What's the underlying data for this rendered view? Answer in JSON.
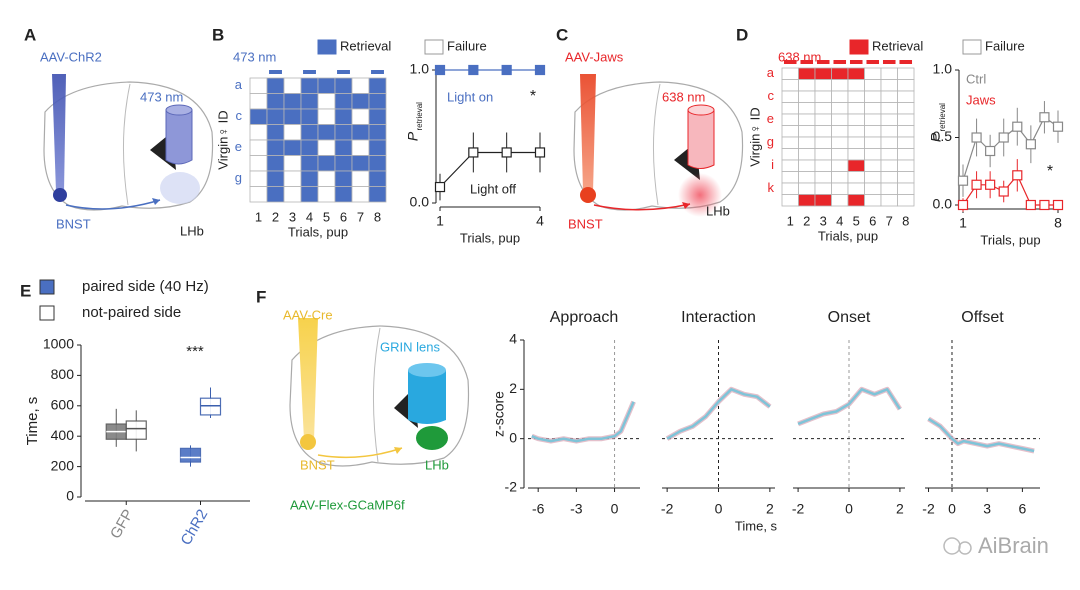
{
  "labels": {
    "A": "A",
    "B": "B",
    "C": "C",
    "D": "D",
    "E": "E",
    "F": "F",
    "a_virus": "AAV-ChR2",
    "a_light": "473 nm",
    "a_bnst": "BNST",
    "a_lhb": "LHb",
    "c_virus": "AAV-Jaws",
    "c_light": "638 nm",
    "c_bnst": "BNST",
    "c_lhb": "LHb",
    "f_virus": "AAV-Cre",
    "f_lens": "GRIN lens",
    "f_bnst": "BNST",
    "f_lhb": "LHb",
    "f_reporter": "AAV-Flex-GCaMP6f",
    "f_xlabel": "Time, s",
    "watermark": "AiBrain"
  },
  "chart_data": [
    {
      "type": "grid",
      "title": "473 nm",
      "color": "#4a6fc1",
      "label_color": "#4a6fc1",
      "legend": [
        "Retrieval",
        "Failure"
      ],
      "ylabel": "Virgin♀ ID",
      "xlabel": "Trials, pup",
      "rows": [
        "a",
        null,
        "c",
        null,
        "e",
        null,
        "g",
        null
      ],
      "columns": [
        1,
        2,
        3,
        4,
        5,
        6,
        7,
        8
      ],
      "light_on": [
        0,
        1,
        0,
        1,
        0,
        1,
        0,
        1
      ],
      "values": [
        [
          0,
          1,
          0,
          1,
          1,
          1,
          0,
          1
        ],
        [
          0,
          1,
          1,
          1,
          0,
          1,
          1,
          1
        ],
        [
          1,
          1,
          1,
          1,
          0,
          1,
          0,
          1
        ],
        [
          0,
          1,
          0,
          1,
          1,
          1,
          1,
          1
        ],
        [
          0,
          1,
          1,
          1,
          0,
          1,
          0,
          1
        ],
        [
          0,
          1,
          0,
          1,
          1,
          1,
          1,
          1
        ],
        [
          0,
          1,
          0,
          1,
          0,
          1,
          0,
          1
        ],
        [
          0,
          1,
          0,
          1,
          0,
          1,
          0,
          1
        ]
      ]
    },
    {
      "type": "line",
      "markers": "square",
      "ylabel": "P",
      "ylabel_sub": "retrieval",
      "xlabel": "Trials, pup",
      "xlim": [
        1,
        4
      ],
      "xticks": [
        1,
        4
      ],
      "ylim": [
        0,
        1
      ],
      "yticks": [
        {
          "value": 0,
          "label": "0.0"
        },
        {
          "value": 1,
          "label": "1.0"
        }
      ],
      "annotations": [
        "*"
      ],
      "series": [
        {
          "name": "Light on",
          "color": "#4a6fc1",
          "fill": "#4a6fc1",
          "x": [
            1,
            2,
            3,
            4
          ],
          "values": [
            1,
            1,
            1,
            1
          ]
        },
        {
          "name": "Light off",
          "color": "#222222",
          "fill": "#ffffff",
          "x": [
            1,
            2,
            3,
            4
          ],
          "values": [
            0.12,
            0.38,
            0.38,
            0.38
          ],
          "errors": [
            0.1,
            0.15,
            0.15,
            0.15
          ]
        }
      ]
    },
    {
      "type": "grid",
      "title": "638 nm",
      "color": "#e8262a",
      "label_color": "#e8262a",
      "legend": [
        "Retrieval",
        "Failure"
      ],
      "ylabel": "Virgin♀ ID",
      "xlabel": "Trials, pup",
      "rows": [
        "a",
        null,
        "c",
        null,
        "e",
        null,
        "g",
        null,
        "i",
        null,
        "k",
        null
      ],
      "columns": [
        1,
        2,
        3,
        4,
        5,
        6,
        7,
        8
      ],
      "light_on": [
        1,
        1,
        1,
        1,
        1,
        1,
        1,
        1
      ],
      "values": [
        [
          0,
          1,
          1,
          1,
          1,
          0,
          0,
          0
        ],
        [
          0,
          0,
          0,
          0,
          0,
          0,
          0,
          0
        ],
        [
          0,
          0,
          0,
          0,
          0,
          0,
          0,
          0
        ],
        [
          0,
          0,
          0,
          0,
          0,
          0,
          0,
          0
        ],
        [
          0,
          0,
          0,
          0,
          0,
          0,
          0,
          0
        ],
        [
          0,
          0,
          0,
          0,
          0,
          0,
          0,
          0
        ],
        [
          0,
          0,
          0,
          0,
          0,
          0,
          0,
          0
        ],
        [
          0,
          0,
          0,
          0,
          0,
          0,
          0,
          0
        ],
        [
          0,
          0,
          0,
          0,
          1,
          0,
          0,
          0
        ],
        [
          0,
          0,
          0,
          0,
          0,
          0,
          0,
          0
        ],
        [
          0,
          0,
          0,
          0,
          0,
          0,
          0,
          0
        ],
        [
          0,
          1,
          1,
          0,
          1,
          0,
          0,
          0
        ]
      ]
    },
    {
      "type": "line",
      "markers": "square",
      "ylabel": "P",
      "ylabel_sub": "retrieval",
      "xlabel": "Trials, pup",
      "xlim": [
        1,
        8
      ],
      "xticks": [
        1,
        8
      ],
      "ylim": [
        0,
        1
      ],
      "yticks": [
        {
          "value": 0,
          "label": "0.0"
        },
        {
          "value": 0.5,
          "label": "0.5"
        },
        {
          "value": 1,
          "label": "1.0"
        }
      ],
      "annotations": [
        "*"
      ],
      "series": [
        {
          "name": "Ctrl",
          "color": "#888888",
          "fill": "#ffffff",
          "x": [
            1,
            2,
            3,
            4,
            5,
            6,
            7,
            8
          ],
          "values": [
            0.18,
            0.5,
            0.4,
            0.5,
            0.58,
            0.45,
            0.65,
            0.58
          ],
          "errors": [
            0.12,
            0.14,
            0.12,
            0.14,
            0.14,
            0.14,
            0.12,
            0.12
          ]
        },
        {
          "name": "Jaws",
          "color": "#e8262a",
          "fill": "#ffffff",
          "x": [
            1,
            2,
            3,
            4,
            5,
            6,
            7,
            8
          ],
          "values": [
            0,
            0.15,
            0.15,
            0.1,
            0.22,
            0,
            0,
            0
          ],
          "errors": [
            0.05,
            0.1,
            0.1,
            0.08,
            0.12,
            0.03,
            0.03,
            0.03
          ]
        }
      ]
    },
    {
      "type": "box",
      "ylabel": "Time, s",
      "categories": [
        "GFP",
        "ChR2"
      ],
      "category_colors": [
        "#888888",
        "#4a6fc1"
      ],
      "ylim": [
        0,
        1000
      ],
      "yticks": [
        0,
        200,
        400,
        600,
        800,
        1000
      ],
      "annotations": [
        "***"
      ],
      "series": [
        {
          "name": "paired side (40 Hz)",
          "fill": [
            "#7f7f7f",
            "#4a6fc1"
          ],
          "edge": [
            "#555555",
            "#3b5fae"
          ],
          "min": [
            330,
            200
          ],
          "q1": [
            380,
            230
          ],
          "median": [
            430,
            260
          ],
          "q3": [
            480,
            320
          ],
          "max": [
            580,
            340
          ]
        },
        {
          "name": "not-paired side",
          "fill": [
            "#ffffff",
            "#ffffff"
          ],
          "edge": [
            "#555555",
            "#3b5fae"
          ],
          "min": [
            300,
            520
          ],
          "q1": [
            380,
            540
          ],
          "median": [
            450,
            600
          ],
          "q3": [
            500,
            650
          ],
          "max": [
            570,
            720
          ]
        }
      ]
    },
    {
      "type": "line",
      "title": "Approach",
      "ylabel": "z-score",
      "show_yaxis": true,
      "xlim": [
        -6.8,
        2
      ],
      "xticks": [
        -6,
        -3,
        0
      ],
      "ylim": [
        -2,
        4
      ],
      "yticks": [
        -2,
        0,
        2,
        4
      ],
      "ref_color": "#999999",
      "series": [
        {
          "color": "#7fc4d8",
          "x": [
            -6.5,
            -6,
            -5,
            -4,
            -3,
            -2,
            -1,
            0,
            0.5,
            1,
            1.5
          ],
          "values": [
            0.1,
            0,
            -0.1,
            0,
            -0.1,
            0,
            0,
            0.1,
            0.3,
            0.9,
            1.5
          ]
        }
      ]
    },
    {
      "type": "line",
      "title": "Interaction",
      "xlim": [
        -2.2,
        2.2
      ],
      "xticks": [
        -2,
        0,
        2
      ],
      "ylim": [
        -2,
        4
      ],
      "ref_color": "#222222",
      "series": [
        {
          "color": "#7fc4d8",
          "x": [
            -2,
            -1.5,
            -1,
            -0.5,
            0,
            0.5,
            1,
            1.5,
            2
          ],
          "values": [
            0,
            0.3,
            0.5,
            0.9,
            1.5,
            2.0,
            1.8,
            1.7,
            1.3
          ]
        }
      ]
    },
    {
      "type": "line",
      "title": "Onset",
      "xlim": [
        -2.2,
        2.2
      ],
      "xticks": [
        -2,
        0,
        2
      ],
      "ylim": [
        -2,
        4
      ],
      "ref_color": "#999999",
      "series": [
        {
          "color": "#7fc4d8",
          "x": [
            -2,
            -1.5,
            -1,
            -0.5,
            0,
            0.5,
            1,
            1.5,
            2
          ],
          "values": [
            0.6,
            0.8,
            1.0,
            1.1,
            1.4,
            2.0,
            1.8,
            2.0,
            1.2
          ]
        }
      ]
    },
    {
      "type": "line",
      "title": "Offset",
      "xlim": [
        -2.3,
        7.5
      ],
      "xticks": [
        -2,
        0,
        3,
        6
      ],
      "ylim": [
        -2,
        4
      ],
      "ref_color": "#222222",
      "series": [
        {
          "color": "#7fc4d8",
          "x": [
            -2,
            -1,
            0,
            0.5,
            1,
            2,
            3,
            4,
            5,
            6,
            7
          ],
          "values": [
            0.8,
            0.5,
            0,
            -0.2,
            -0.1,
            -0.2,
            -0.3,
            -0.2,
            -0.3,
            -0.4,
            -0.5
          ]
        }
      ]
    }
  ]
}
